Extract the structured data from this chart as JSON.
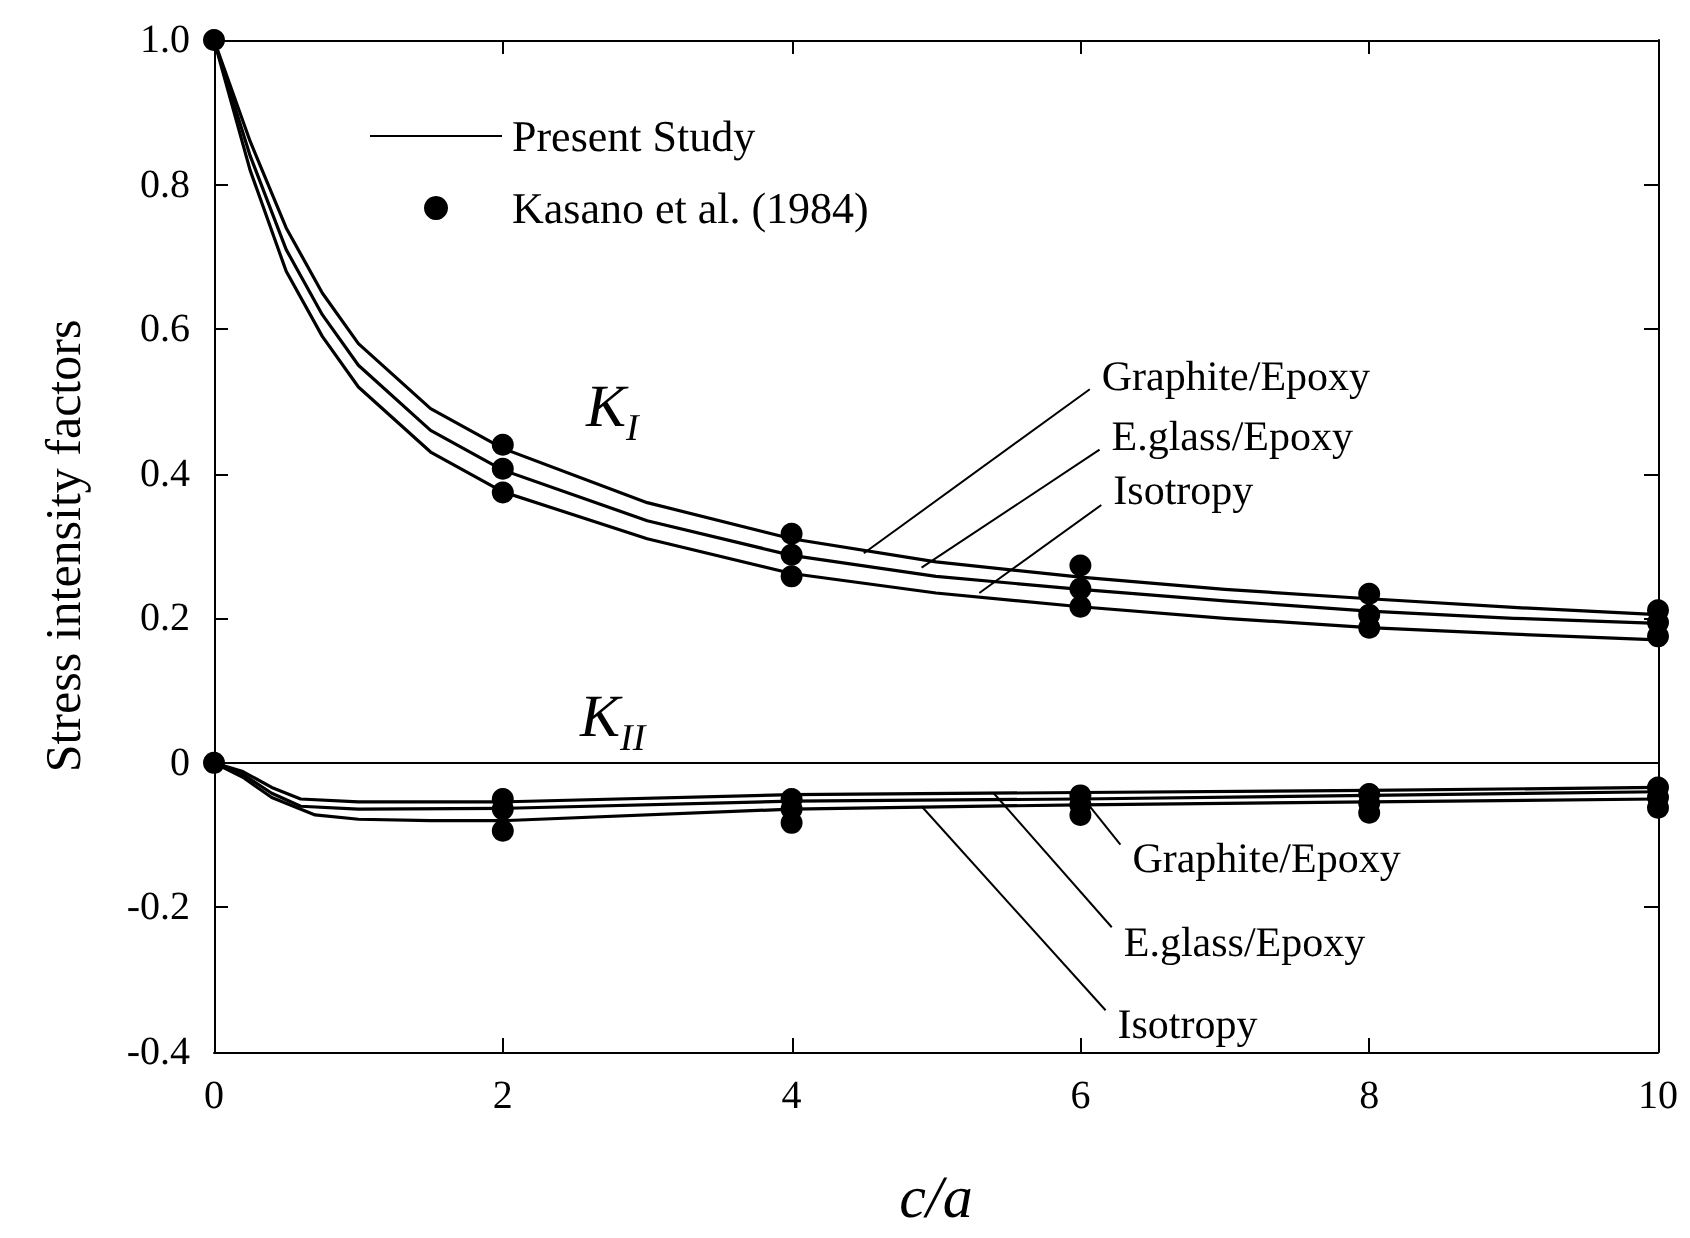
{
  "chart_data": {
    "type": "line",
    "xlabel": "c/a",
    "ylabel": "Stress intensity factors",
    "xlim": [
      0,
      10
    ],
    "xticks": [
      0,
      2,
      4,
      6,
      8,
      10
    ],
    "ylim": [
      -0.4,
      1.0
    ],
    "yticks": [
      -0.4,
      -0.2,
      0,
      0.2,
      0.4,
      0.6,
      {
        "value": 1,
        "label": "1.0"
      },
      0.8
    ],
    "grid": false,
    "legend": "top left",
    "line_style": "solid",
    "series": [
      {
        "name": "Present Study",
        "marker": "none",
        "color": "#000000",
        "x": [
          0,
          0.25,
          0.5,
          0.75,
          1,
          1.5,
          2,
          3,
          4,
          5,
          6,
          7,
          8,
          9,
          10
        ],
        "values": [
          1,
          0.86,
          0.74,
          0.65,
          0.58,
          0.49,
          0.435,
          0.36,
          0.31,
          0.278,
          0.257,
          0.24,
          0.227,
          0.215,
          0.205
        ]
      },
      {
        "type": "line",
        "marker": "none",
        "color": "#000000",
        "x": [
          0,
          0.25,
          0.5,
          0.75,
          1,
          1.5,
          2,
          3,
          4,
          5,
          6,
          7,
          8,
          9,
          10
        ],
        "values": [
          1,
          0.84,
          0.71,
          0.62,
          0.55,
          0.46,
          0.405,
          0.335,
          0.287,
          0.258,
          0.24,
          0.224,
          0.21,
          0.2,
          0.193
        ]
      },
      {
        "type": "line",
        "marker": "none",
        "color": "#000000",
        "x": [
          0,
          0.25,
          0.5,
          0.75,
          1,
          1.5,
          2,
          3,
          4,
          5,
          6,
          7,
          8,
          9,
          10
        ],
        "values": [
          1,
          0.82,
          0.68,
          0.59,
          0.52,
          0.43,
          0.375,
          0.31,
          0.262,
          0.235,
          0.216,
          0.2,
          0.187,
          0.178,
          0.17
        ]
      },
      {
        "type": "line",
        "marker": "none",
        "color": "#000000",
        "x": [
          0,
          0.2,
          0.4,
          0.6,
          1,
          2,
          4,
          6,
          8,
          10
        ],
        "values": [
          0,
          -0.012,
          -0.034,
          -0.05,
          -0.054,
          -0.054,
          -0.044,
          -0.041,
          -0.038,
          -0.034
        ]
      },
      {
        "type": "line",
        "marker": "none",
        "color": "#000000",
        "x": [
          0,
          0.2,
          0.4,
          0.6,
          1,
          2,
          4,
          6,
          8,
          10
        ],
        "values": [
          0,
          -0.016,
          -0.042,
          -0.06,
          -0.064,
          -0.063,
          -0.053,
          -0.05,
          -0.045,
          -0.04
        ]
      },
      {
        "type": "line",
        "marker": "none",
        "color": "#000000",
        "x": [
          0,
          0.2,
          0.4,
          0.7,
          1,
          1.5,
          2,
          4,
          6,
          8,
          10
        ],
        "values": [
          0,
          -0.02,
          -0.048,
          -0.072,
          -0.078,
          -0.08,
          -0.08,
          -0.064,
          -0.058,
          -0.054,
          -0.05
        ]
      },
      {
        "name": "Kasano et al. (1984)",
        "type": "scatter",
        "marker": "circle",
        "color": "#000000",
        "x": [
          0,
          2,
          2,
          2,
          4,
          4,
          4,
          6,
          6,
          6,
          8,
          8,
          8,
          10,
          10,
          10,
          0,
          2,
          2,
          2,
          4,
          4,
          4,
          6,
          6,
          6,
          8,
          8,
          8,
          10,
          10,
          10
        ],
        "values": [
          1,
          0.44,
          0.407,
          0.374,
          0.317,
          0.288,
          0.258,
          0.273,
          0.241,
          0.216,
          0.234,
          0.205,
          0.187,
          0.211,
          0.194,
          0.175,
          0,
          -0.05,
          -0.064,
          -0.094,
          -0.05,
          -0.064,
          -0.083,
          -0.045,
          -0.058,
          -0.072,
          -0.043,
          -0.056,
          -0.069,
          -0.034,
          -0.048,
          -0.062
        ]
      }
    ],
    "ref_lines": [
      {
        "axis": "y",
        "value": 0,
        "label": null,
        "color": "#000000"
      }
    ],
    "annotations": [
      {
        "text": "Graphite/Epoxy",
        "x": 4.5,
        "y": 0.29
      },
      {
        "text": "E.glass/Epoxy",
        "x": 4.9,
        "y": 0.27
      },
      {
        "text": "Isotropy",
        "x": 5.3,
        "y": 0.235
      },
      {
        "text": "Graphite/Epoxy",
        "x": 6,
        "y": -0.044
      },
      {
        "text": "E.glass/Epoxy",
        "x": 5.4,
        "y": -0.042
      },
      {
        "text": "Isotropy",
        "x": 4.9,
        "y": -0.06
      },
      "K$_{I}$",
      "K$_{II}$"
    ]
  }
}
